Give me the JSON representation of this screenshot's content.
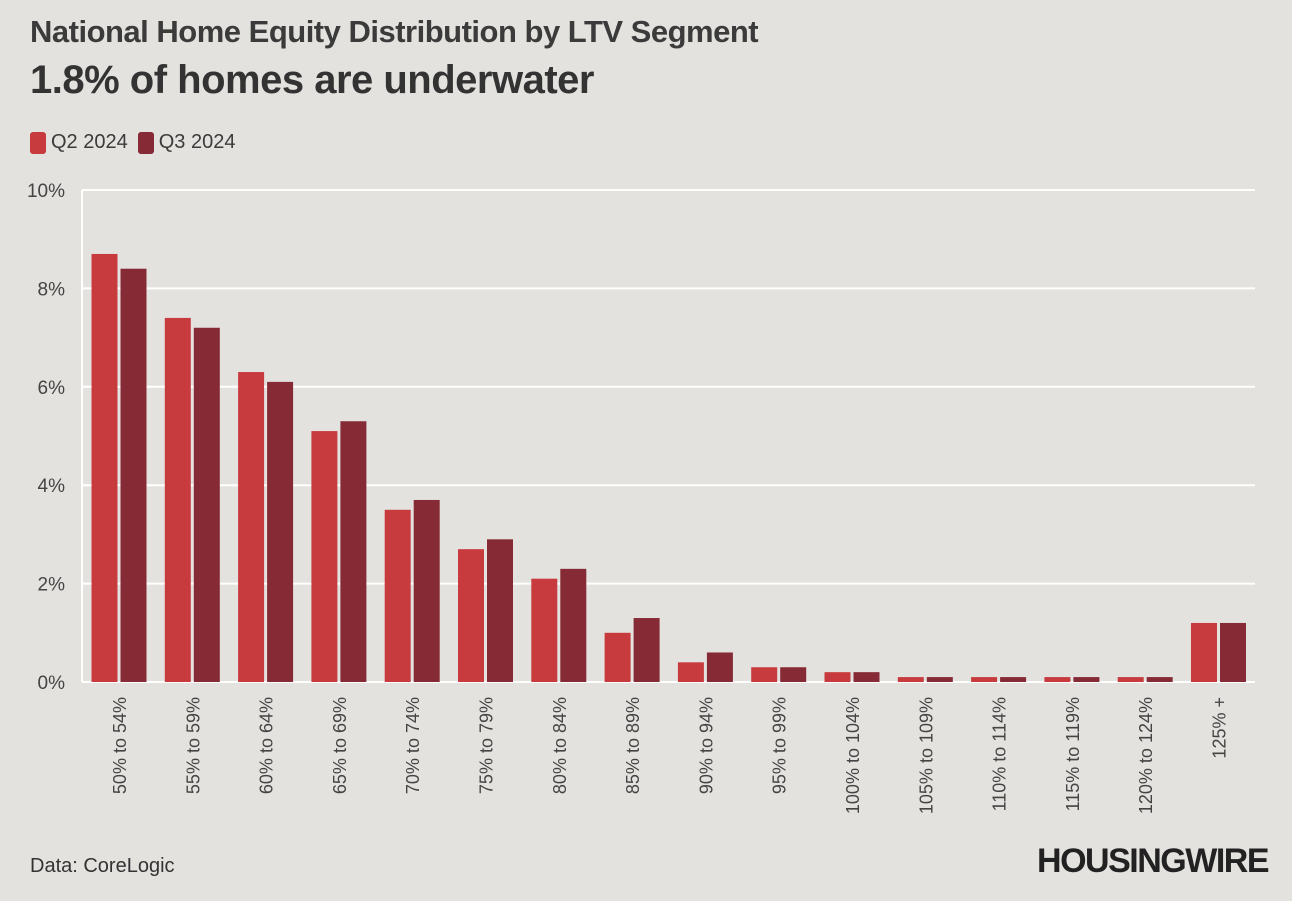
{
  "header": {
    "title": "National Home Equity Distribution by LTV Segment",
    "subtitle": "1.8% of homes are underwater"
  },
  "footer": {
    "source": "Data: CoreLogic",
    "brand": "HOUSINGWIRE"
  },
  "colors": {
    "q2": "#c73b3e",
    "q3": "#862a35",
    "grid": "#ffffff",
    "axis_text": "#444444",
    "background": "#e4e2df"
  },
  "chart_data": {
    "type": "bar",
    "title": "National Home Equity Distribution by LTV Segment",
    "subtitle": "1.8% of homes are underwater",
    "categories": [
      "50% to 54%",
      "55% to 59%",
      "60% to 64%",
      "65% to 69%",
      "70% to 74%",
      "75% to 79%",
      "80% to 84%",
      "85% to 89%",
      "90% to 94%",
      "95% to 99%",
      "100% to 104%",
      "105% to 109%",
      "110% to 114%",
      "115% to 119%",
      "120% to 124%",
      "125% +"
    ],
    "series": [
      {
        "name": "Q2 2024",
        "values": [
          8.7,
          7.4,
          6.3,
          5.1,
          3.5,
          2.7,
          2.1,
          1.0,
          0.4,
          0.3,
          0.2,
          0.1,
          0.1,
          0.1,
          0.1,
          1.2
        ]
      },
      {
        "name": "Q3 2024",
        "values": [
          8.4,
          7.2,
          6.1,
          5.3,
          3.7,
          2.9,
          2.3,
          1.3,
          0.6,
          0.3,
          0.2,
          0.1,
          0.1,
          0.1,
          0.1,
          1.2
        ]
      }
    ],
    "ylim": [
      0,
      10
    ],
    "yticks": [
      0,
      2,
      4,
      6,
      8,
      10
    ],
    "ytick_labels": [
      "0%",
      "2%",
      "4%",
      "6%",
      "8%",
      "10%"
    ],
    "xlabel": "",
    "ylabel": "",
    "grid": true,
    "legend": "top-left"
  }
}
